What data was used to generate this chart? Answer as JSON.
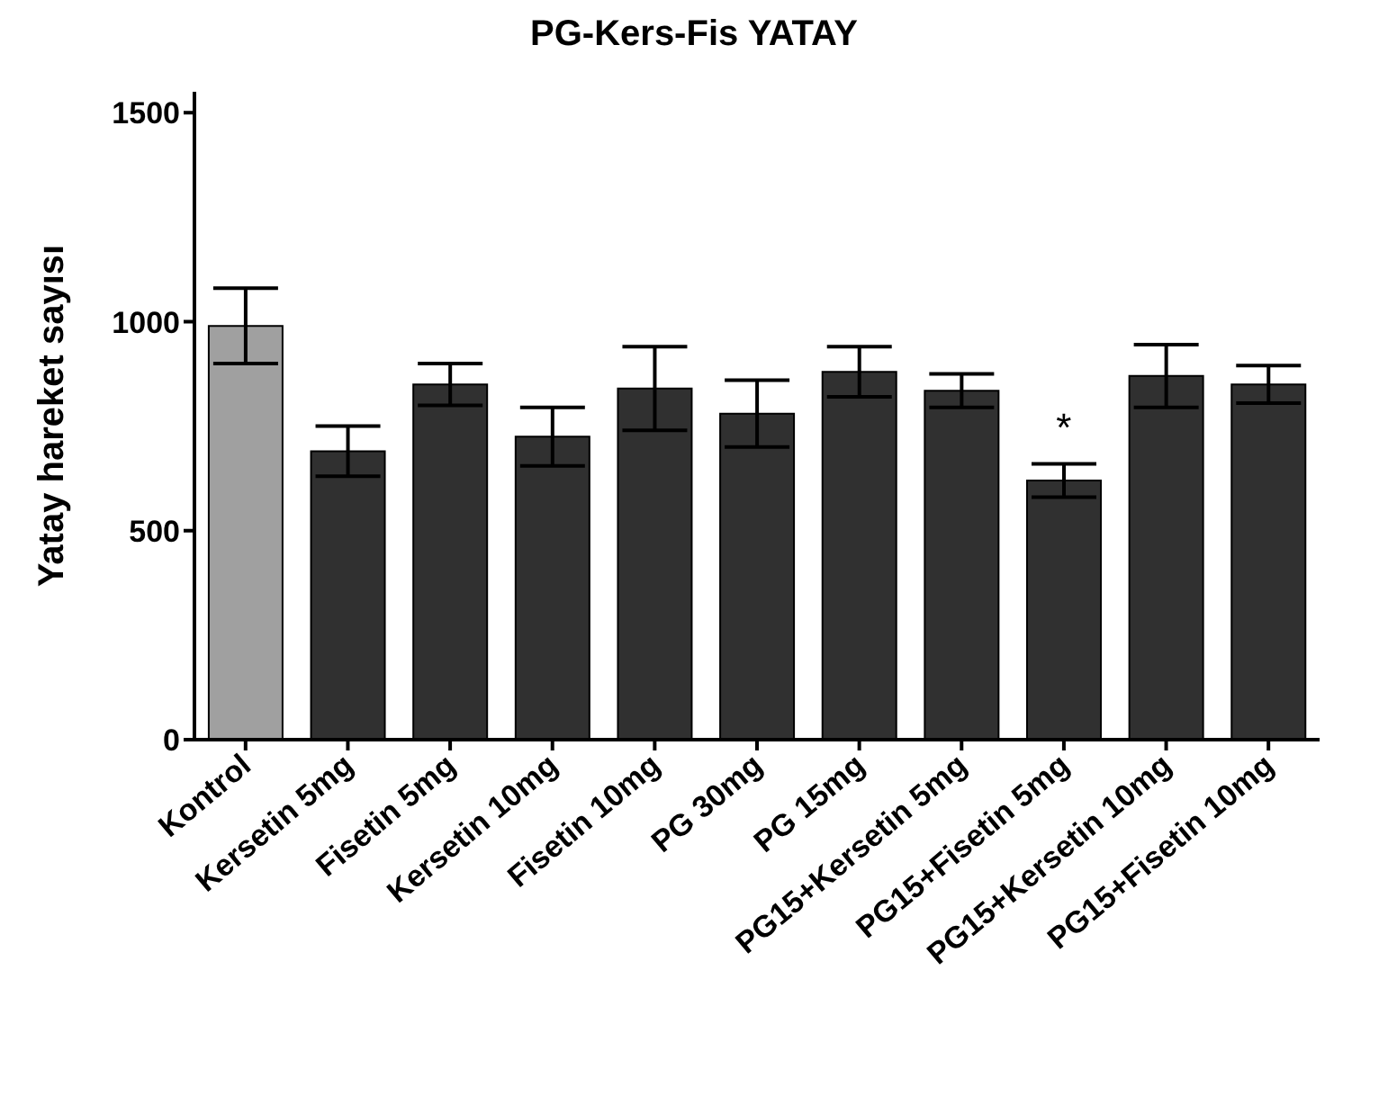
{
  "chart_data": {
    "type": "bar",
    "title": "PG-Kers-Fis YATAY",
    "ylabel": "Yatay hareket sayısı",
    "categories": [
      "Kontrol",
      "Kersetin 5mg",
      "Fisetin 5mg",
      "Kersetin 10mg",
      "Fisetin 10mg",
      "PG 30mg",
      "PG 15mg",
      "PG15+Kersetin 5mg",
      "PG15+Fisetin 5mg",
      "PG15+Kersetin 10mg",
      "PG15+Fisetin 10mg"
    ],
    "values": [
      990,
      690,
      850,
      725,
      840,
      780,
      880,
      835,
      620,
      870,
      850
    ],
    "errors": [
      90,
      60,
      50,
      70,
      100,
      80,
      60,
      40,
      40,
      75,
      45
    ],
    "colors": [
      "#a0a0a0",
      "#303030",
      "#303030",
      "#303030",
      "#303030",
      "#303030",
      "#303030",
      "#303030",
      "#303030",
      "#303030",
      "#303030"
    ],
    "ylim": [
      0,
      1550
    ],
    "yticks": [
      0,
      500,
      1000,
      1500
    ],
    "grid": false,
    "legend": false,
    "annotations": [
      {
        "text": "*",
        "x": "PG15+Fisetin 5mg",
        "y": 620
      }
    ]
  }
}
